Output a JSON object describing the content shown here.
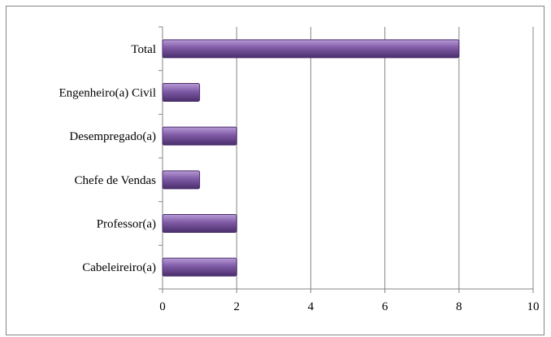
{
  "chart_data": {
    "type": "bar",
    "orientation": "horizontal",
    "categories": [
      "Total",
      "Engenheiro(a) Civil",
      "Desempregado(a)",
      "Chefe de Vendas",
      "Professor(a)",
      "Cabeleireiro(a)"
    ],
    "values": [
      8,
      1,
      2,
      1,
      2,
      2
    ],
    "xlim": [
      0,
      10
    ],
    "xticks": [
      "0",
      "2",
      "4",
      "6",
      "8",
      "10"
    ],
    "title": "",
    "xlabel": "",
    "ylabel": "",
    "grid": "vertical",
    "legend": "none",
    "bar_color": "#7f5aa6",
    "bar_color_light": "#b79ad6",
    "bar_color_dark": "#4a2e6b"
  }
}
